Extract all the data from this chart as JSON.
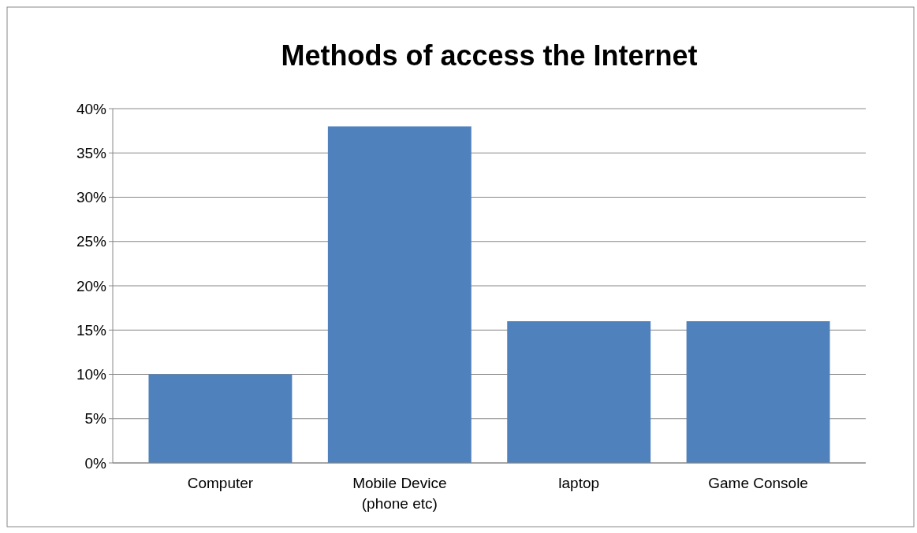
{
  "chart_data": {
    "type": "bar",
    "title": "Methods of access the Internet",
    "categories": [
      "Computer",
      "Mobile Device (phone etc)",
      "laptop",
      "Game Console"
    ],
    "values": [
      0.1,
      0.38,
      0.16,
      0.16
    ],
    "color": "#4f81bd",
    "ylim": [
      0,
      0.4
    ],
    "yticks": [
      {
        "value": 0,
        "label": "0%"
      },
      {
        "value": 0.05,
        "label": "5%"
      },
      {
        "value": 0.1,
        "label": "10%"
      },
      {
        "value": 0.15,
        "label": "15%"
      },
      {
        "value": 0.2,
        "label": "20%"
      },
      {
        "value": 0.25,
        "label": "25%"
      },
      {
        "value": 0.3,
        "label": "30%"
      },
      {
        "value": 0.35,
        "label": "35%"
      },
      {
        "value": 0.4,
        "label": "40%"
      }
    ],
    "grid": "y"
  }
}
